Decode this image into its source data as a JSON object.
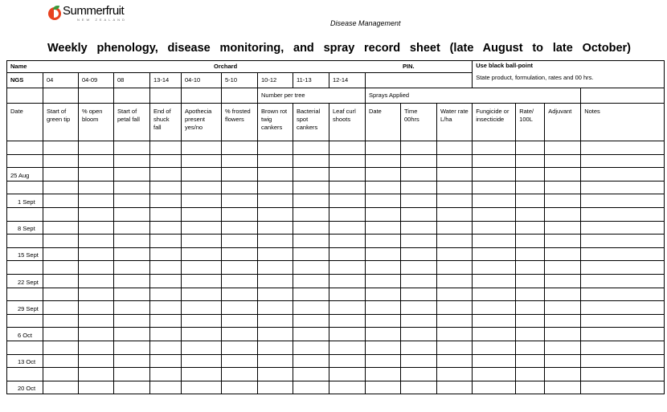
{
  "header": {
    "logo_text": "Summerfruit",
    "logo_subtext": "NEW ZEALAND",
    "department": "Disease Management",
    "title": "Weekly phenology, disease monitoring, and spray record sheet (late August to late October)"
  },
  "form": {
    "name_label": "Name",
    "orchard_label": "Orchard",
    "pin_label": "PIN.",
    "instruction_title": "Use black ball-point",
    "instruction_text": "State product, formulation, rates and 00 hrs.",
    "ngs_label": "NGS",
    "ngs_values": [
      "04",
      "04-09",
      "08",
      "13-14",
      "04-10",
      "5-10",
      "10-12",
      "11-13",
      "12-14"
    ],
    "number_per_tree": "Number per tree",
    "sprays_applied": "Sprays Applied",
    "columns": [
      "Date",
      "Start of green tip",
      "% open bloom",
      "Start of petal fall",
      "End of shuck fall",
      "Apothecia present yes/no",
      "% frosted flowers",
      "Brown rot twig cankers",
      "Bacterial spot cankers",
      "Leaf curl shoots",
      "Date",
      "Time 00hrs",
      "Water rate L/ha",
      "Fungicide or insecticide",
      "Rate/ 100L",
      "Adjuvant",
      "Notes"
    ],
    "rows": [
      "",
      "",
      "25 Aug",
      "",
      "1 Sept",
      "",
      "8 Sept",
      "",
      "15 Sept",
      "",
      "22 Sept",
      "",
      "29 Sept",
      "",
      "6 Oct",
      "",
      "13 Oct",
      "",
      "20 Oct"
    ]
  }
}
